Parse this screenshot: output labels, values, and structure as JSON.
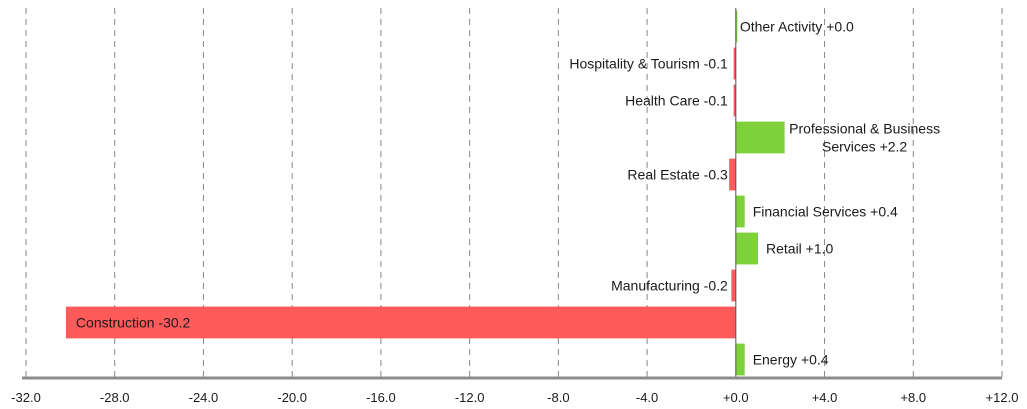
{
  "chart_data": {
    "type": "bar",
    "orientation": "horizontal",
    "categories": [
      "Other Activity",
      "Hospitality & Tourism",
      "Health Care",
      "Professional & Business Services",
      "Real Estate",
      "Financial Services",
      "Retail",
      "Manufacturing",
      "Construction",
      "Energy"
    ],
    "values": [
      0.0,
      -0.1,
      -0.1,
      2.2,
      -0.3,
      0.4,
      1.0,
      -0.2,
      -30.2,
      0.4
    ],
    "data_labels": [
      [
        "Other Activity +0.0"
      ],
      [
        "Hospitality & Tourism -0.1"
      ],
      [
        "Health Care -0.1"
      ],
      [
        "Professional & Business",
        "Services +2.2"
      ],
      [
        "Real Estate -0.3"
      ],
      [
        "Financial Services +0.4"
      ],
      [
        "Retail +1.0"
      ],
      [
        "Manufacturing -0.2"
      ],
      [
        "Construction -30.2"
      ],
      [
        "Energy +0.4"
      ]
    ],
    "xlim": [
      -32,
      12
    ],
    "x_ticks": [
      -32,
      -28,
      -24,
      -20,
      -16,
      -12,
      -8,
      -4,
      0,
      4,
      8,
      12
    ],
    "x_tick_labels": [
      "-32.0",
      "-28.0",
      "-24.0",
      "-20.0",
      "-16.0",
      "-12.0",
      "-8.0",
      "-4.0",
      "+0.0",
      "+4.0",
      "+8.0",
      "+12.0"
    ],
    "grid": "vertical-dashed",
    "colors": {
      "positive": "#7fd13b",
      "negative": "#ff5b5b",
      "grid": "#888888",
      "axis": "#8c8c8c",
      "zero_line": "#555555"
    },
    "title": "",
    "xlabel": "",
    "ylabel": ""
  }
}
